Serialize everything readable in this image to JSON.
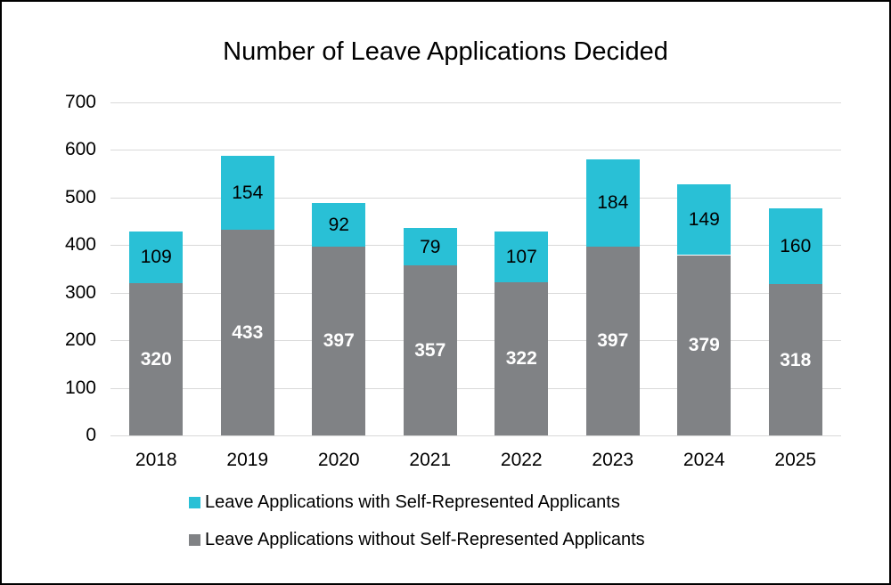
{
  "title": "Number of Leave Applications Decided",
  "chart_data": {
    "type": "bar",
    "stacked": true,
    "title": "Number of Leave Applications Decided",
    "xlabel": "",
    "ylabel": "",
    "categories": [
      "2018",
      "2019",
      "2020",
      "2021",
      "2022",
      "2023",
      "2024",
      "2025"
    ],
    "series": [
      {
        "name": "Leave Applications without Self-Represented Applicants",
        "color": "#808285",
        "label_color": "#ffffff",
        "label_bold": true,
        "values": [
          320,
          433,
          397,
          357,
          322,
          397,
          379,
          318
        ]
      },
      {
        "name": "Leave Applications with Self-Represented Applicants",
        "color": "#29c0d6",
        "label_color": "#000000",
        "label_bold": false,
        "values": [
          109,
          154,
          92,
          79,
          107,
          184,
          149,
          160
        ]
      }
    ],
    "totals": [
      429,
      587,
      489,
      436,
      429,
      581,
      528,
      478
    ],
    "ylim": [
      0,
      700
    ],
    "yticks": [
      0,
      100,
      200,
      300,
      400,
      500,
      600,
      700
    ],
    "grid": true,
    "gridline_color": "#d9d9d9",
    "legend_position": "bottom",
    "legend": [
      {
        "label": "Leave Applications with Self-Represented Applicants",
        "color": "#29c0d6"
      },
      {
        "label": "Leave Applications without Self-Represented Applicants",
        "color": "#808285"
      }
    ]
  }
}
